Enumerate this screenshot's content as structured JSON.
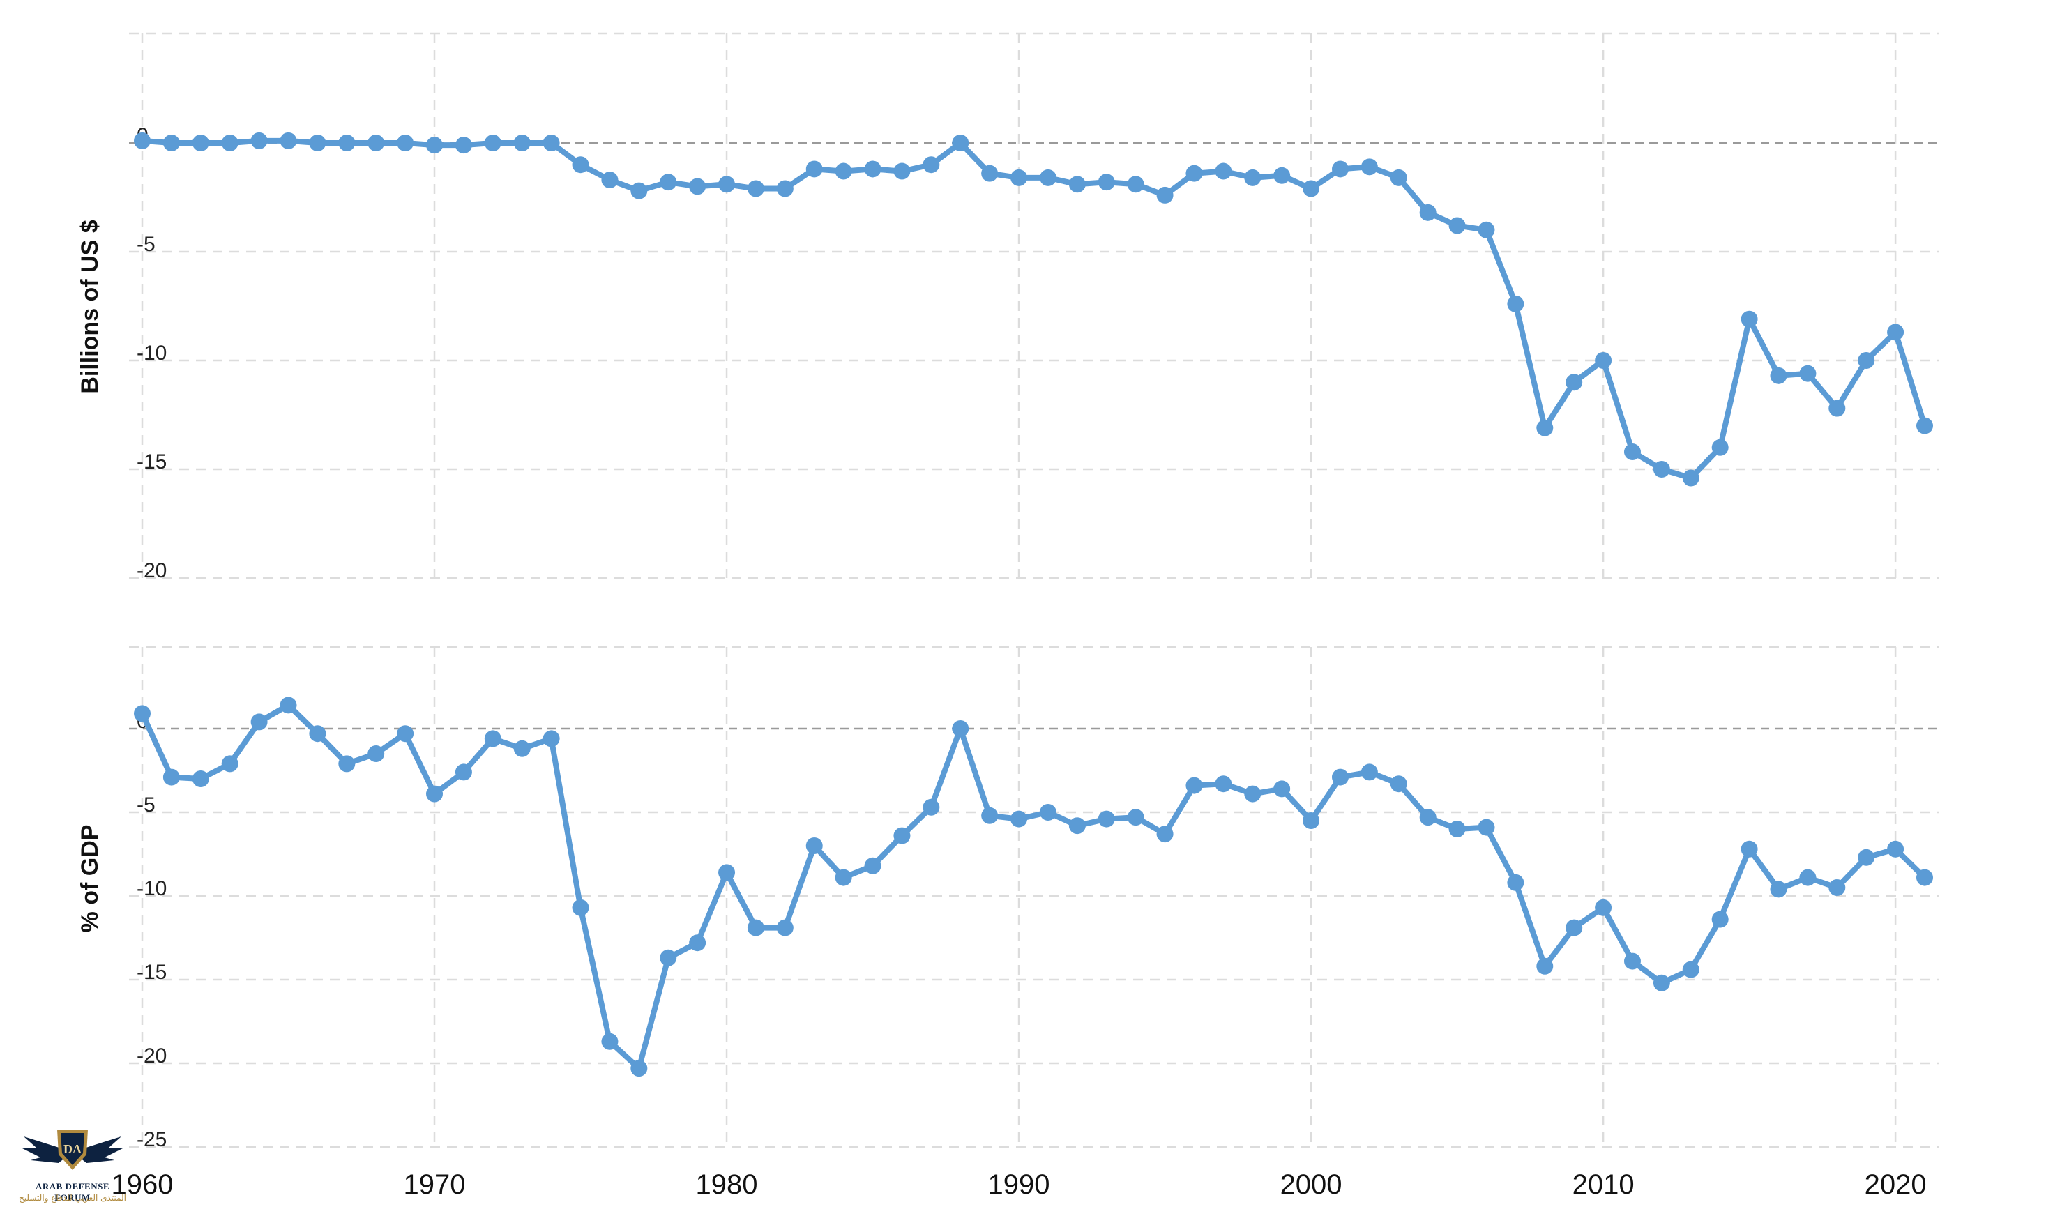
{
  "chart_data": [
    {
      "type": "line",
      "title": "",
      "xlabel": "",
      "ylabel": "Billions of US $",
      "ylim": [
        -20,
        4
      ],
      "yticks": [
        0,
        -5,
        -10,
        -15,
        -20
      ],
      "xlim": [
        1960,
        2021
      ],
      "grid": true,
      "x": [
        1960,
        1961,
        1962,
        1963,
        1964,
        1965,
        1966,
        1967,
        1968,
        1969,
        1970,
        1971,
        1972,
        1973,
        1974,
        1975,
        1976,
        1977,
        1978,
        1979,
        1980,
        1981,
        1982,
        1983,
        1984,
        1985,
        1986,
        1987,
        1988,
        1989,
        1990,
        1991,
        1992,
        1993,
        1994,
        1995,
        1996,
        1997,
        1998,
        1999,
        2000,
        2001,
        2002,
        2003,
        2004,
        2005,
        2006,
        2007,
        2008,
        2009,
        2010,
        2011,
        2012,
        2013,
        2014,
        2015,
        2016,
        2017,
        2018,
        2019,
        2020,
        2021
      ],
      "series": [
        {
          "values": [
            0.1,
            0.0,
            0.0,
            0.0,
            0.1,
            0.1,
            0.0,
            0.0,
            0.0,
            0.0,
            -0.1,
            -0.1,
            0.0,
            0.0,
            0.0,
            -1.0,
            -1.7,
            -2.2,
            -1.8,
            -2.0,
            -1.9,
            -2.1,
            -2.1,
            -1.2,
            -1.3,
            -1.2,
            -1.3,
            -1.0,
            0.0,
            -1.4,
            -1.6,
            -1.6,
            -1.9,
            -1.8,
            -1.9,
            -2.4,
            -1.4,
            -1.3,
            -1.6,
            -1.5,
            -2.1,
            -1.2,
            -1.1,
            -1.6,
            -3.2,
            -3.8,
            -4.0,
            -7.4,
            -13.1,
            -11.0,
            -10.0,
            -14.2,
            -15.0,
            -15.4,
            -14.0,
            -8.1,
            -10.7,
            -10.6,
            -12.2,
            -10.0,
            -8.7,
            -13.0
          ]
        }
      ]
    },
    {
      "type": "line",
      "title": "",
      "xlabel": "",
      "ylabel": "% of GDP",
      "ylim": [
        -25,
        5
      ],
      "yticks": [
        0,
        -5,
        -10,
        -15,
        -20,
        -25
      ],
      "xlim": [
        1960,
        2021
      ],
      "xticks": [
        1960,
        1970,
        1980,
        1990,
        2000,
        2010,
        2020
      ],
      "grid": true,
      "x": [
        1960,
        1961,
        1962,
        1963,
        1964,
        1965,
        1966,
        1967,
        1968,
        1969,
        1970,
        1971,
        1972,
        1973,
        1974,
        1975,
        1976,
        1977,
        1978,
        1979,
        1980,
        1981,
        1982,
        1983,
        1984,
        1985,
        1986,
        1987,
        1988,
        1989,
        1990,
        1991,
        1992,
        1993,
        1994,
        1995,
        1996,
        1997,
        1998,
        1999,
        2000,
        2001,
        2002,
        2003,
        2004,
        2005,
        2006,
        2007,
        2008,
        2009,
        2010,
        2011,
        2012,
        2013,
        2014,
        2015,
        2016,
        2017,
        2018,
        2019,
        2020,
        2021
      ],
      "series": [
        {
          "values": [
            0.9,
            -2.9,
            -3.0,
            -2.1,
            0.4,
            1.4,
            -0.3,
            -2.1,
            -1.5,
            -0.3,
            -3.9,
            -2.6,
            -0.6,
            -1.2,
            -0.6,
            -10.7,
            -18.7,
            -20.3,
            -13.7,
            -12.8,
            -8.6,
            -11.9,
            -11.9,
            -7.0,
            -8.9,
            -8.2,
            -6.4,
            -4.7,
            0.0,
            -5.2,
            -5.4,
            -5.0,
            -5.8,
            -5.4,
            -5.3,
            -6.3,
            -3.4,
            -3.3,
            -3.9,
            -3.6,
            -5.5,
            -2.9,
            -2.6,
            -3.3,
            -5.3,
            -6.0,
            -5.9,
            -9.2,
            -14.2,
            -11.9,
            -10.7,
            -13.9,
            -15.2,
            -14.4,
            -11.4,
            -7.2,
            -9.6,
            -8.9,
            -9.5,
            -7.7,
            -7.2,
            -8.9
          ]
        }
      ]
    }
  ],
  "logo": {
    "monogram": "DA",
    "name_en": "ARAB DEFENSE FORUM",
    "name_ar": "المنتدى العربي للدفاع والتسليح"
  },
  "colors": {
    "series": "#5b9bd5",
    "grid": "#dcdcdc",
    "zero_line": "#9a9a9a"
  }
}
